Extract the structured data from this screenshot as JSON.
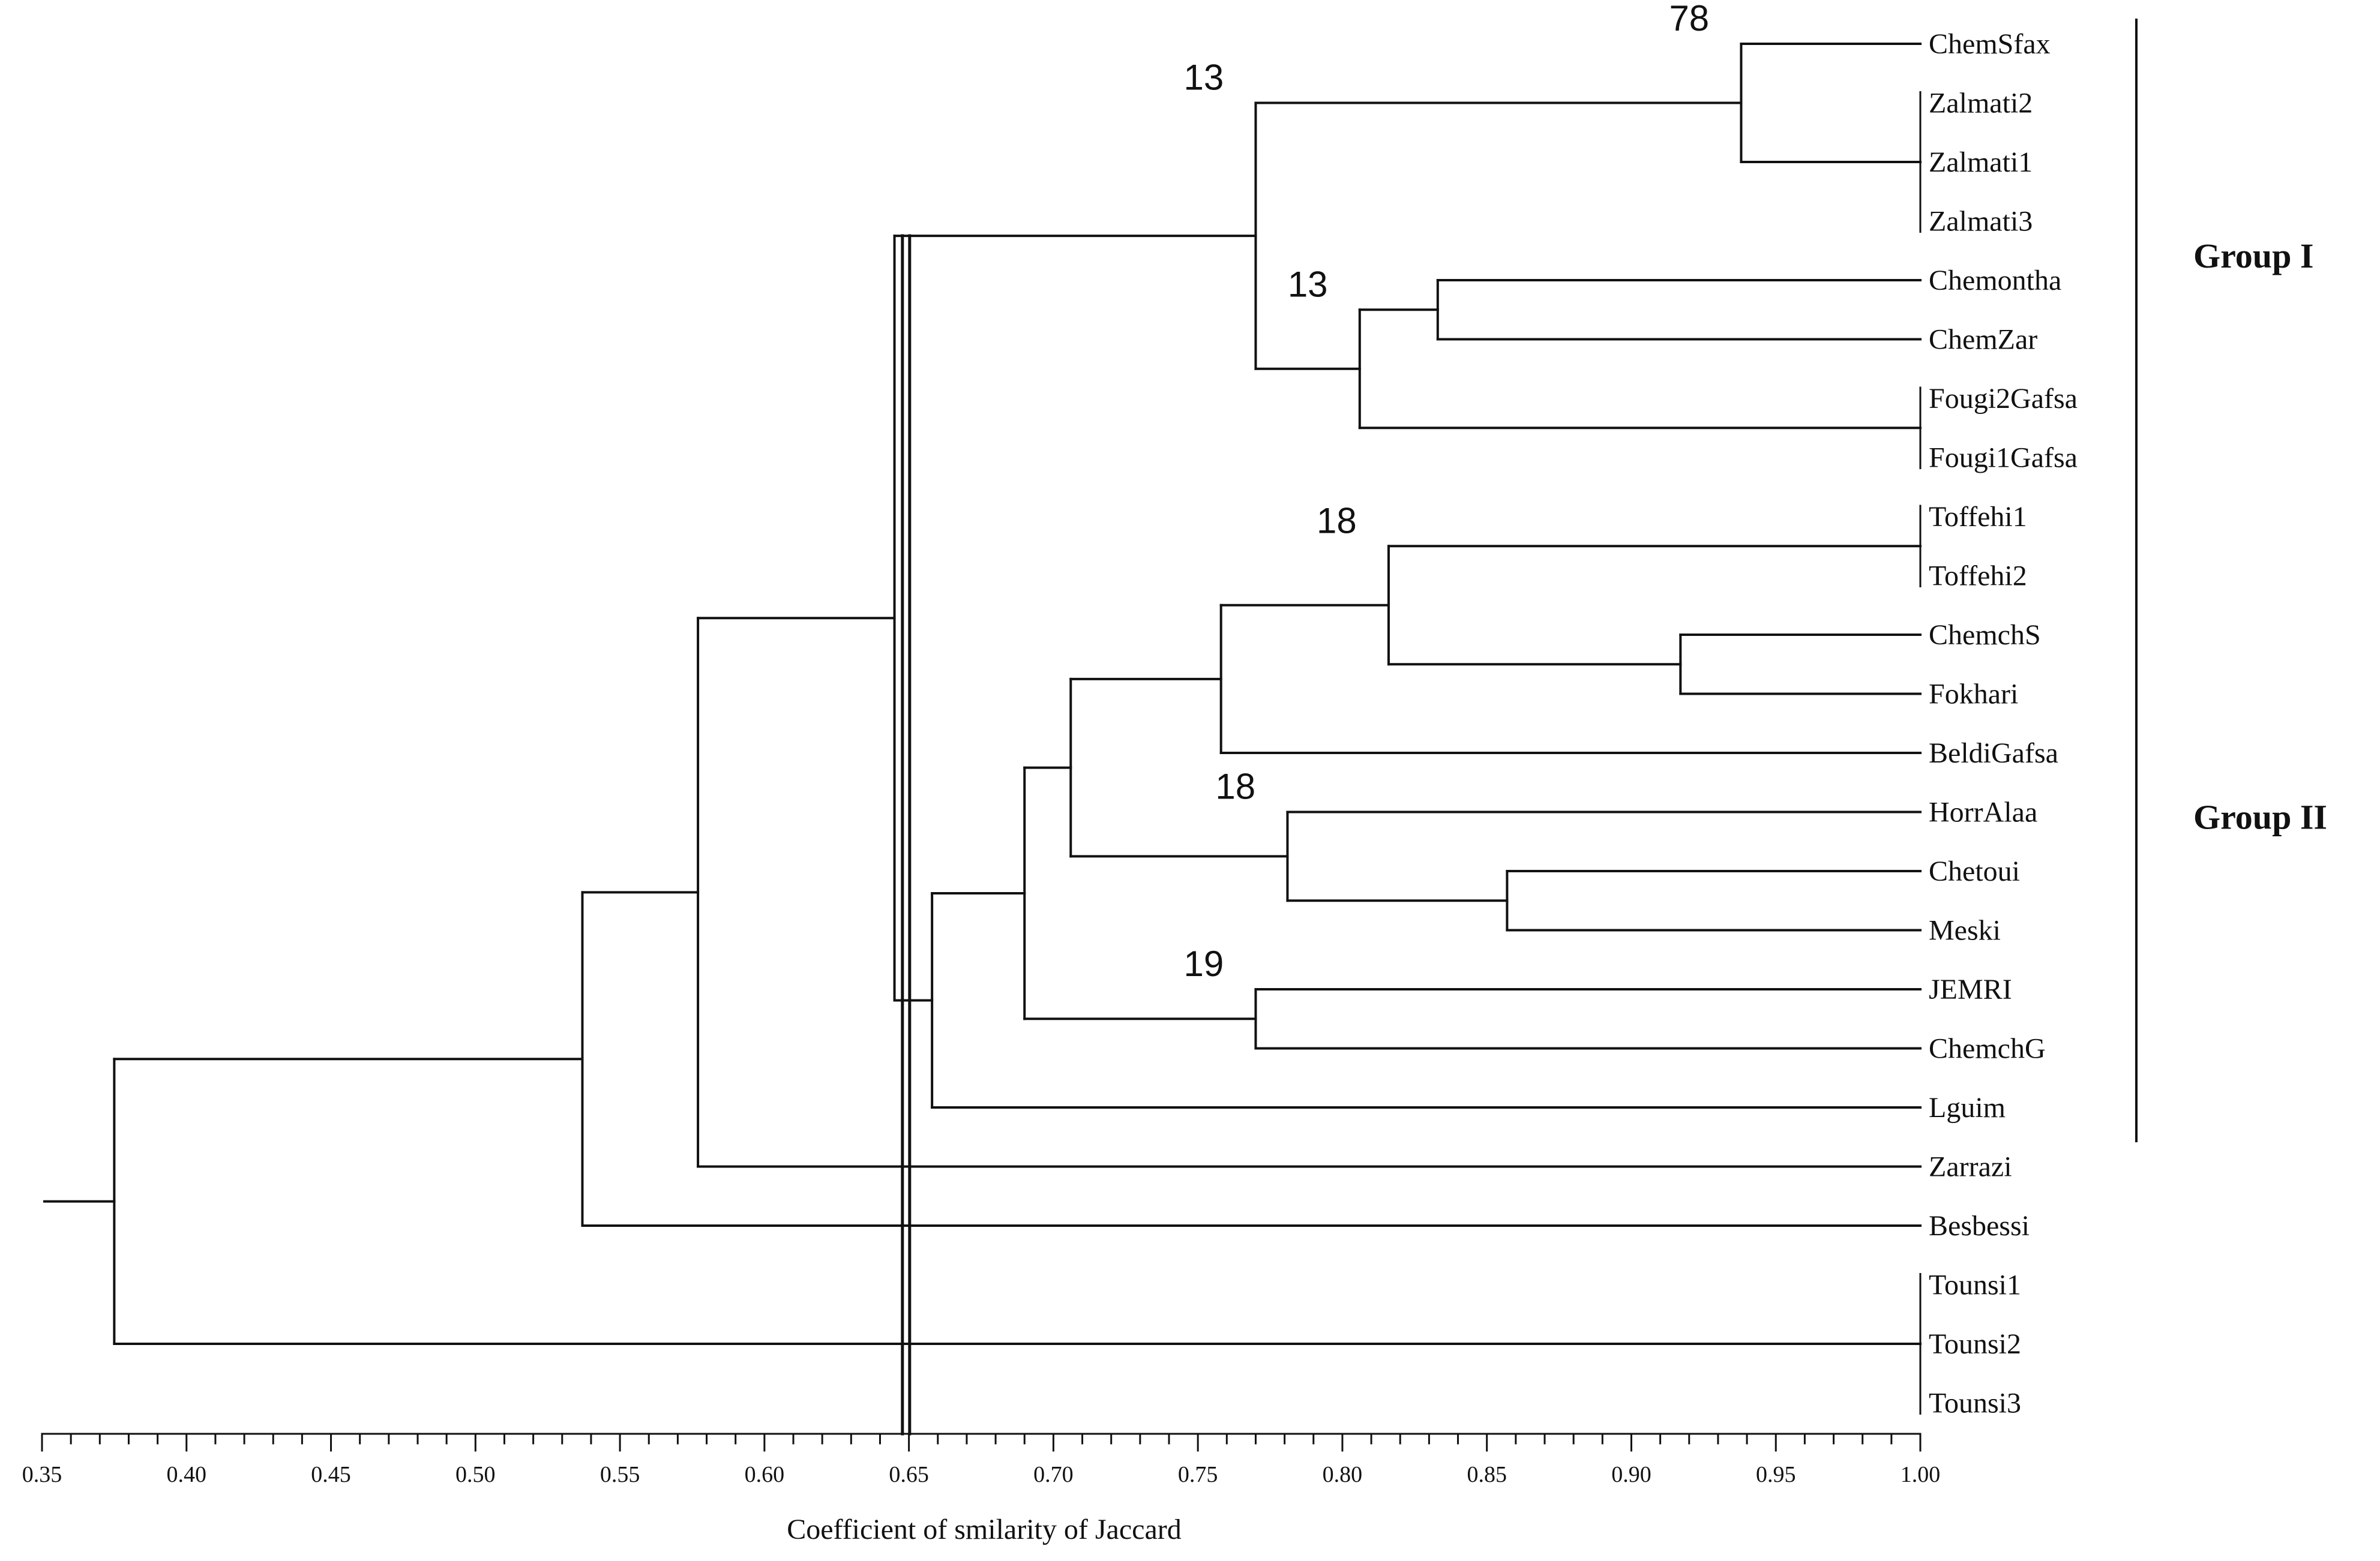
{
  "chart_data": {
    "type": "dendrogram",
    "xlabel": "Coefficient  of smilarity of Jaccard",
    "xlim": [
      0.35,
      1.0
    ],
    "ticks": [
      "0.35",
      "0.40",
      "0.45",
      "0.50",
      "0.55",
      "0.60",
      "0.65",
      "0.70",
      "0.75",
      "0.80",
      "0.85",
      "0.90",
      "0.95",
      "1.00"
    ],
    "cut_line": 0.649,
    "leaves": [
      "ChemSfax",
      "Zalmati2",
      "Zalmati1",
      "Zalmati3",
      "Chemontha",
      "ChemZar",
      "Fougi2Gafsa",
      "Fougi1Gafsa",
      "Toffehi1",
      "Toffehi2",
      "ChemchS",
      "Fokhari",
      "BeldiGafsa",
      "HorrAlaa",
      "Chetoui",
      "Meski",
      "JEMRI",
      "ChemchG",
      "Lguim",
      "Zarrazi",
      "Besbessi",
      "Tounsi1",
      "Tounsi2",
      "Tounsi3"
    ],
    "merges": [
      {
        "id": "Z",
        "children": [
          "Zalmati2",
          "Zalmati1",
          "Zalmati3"
        ],
        "similarity": 1.0
      },
      {
        "id": "F",
        "children": [
          "Fougi2Gafsa",
          "Fougi1Gafsa"
        ],
        "similarity": 1.0
      },
      {
        "id": "T",
        "children": [
          "Toffehi1",
          "Toffehi2"
        ],
        "similarity": 1.0
      },
      {
        "id": "TN",
        "children": [
          "Tounsi1",
          "Tounsi2",
          "Tounsi3"
        ],
        "similarity": 1.0
      },
      {
        "id": "A",
        "children": [
          "ChemSfax",
          "Z"
        ],
        "similarity": 0.938,
        "bootstrap": "78"
      },
      {
        "id": "B",
        "children": [
          "Chemontha",
          "ChemZar"
        ],
        "similarity": 0.833
      },
      {
        "id": "C",
        "children": [
          "B",
          "F"
        ],
        "similarity": 0.806,
        "bootstrap": "13"
      },
      {
        "id": "D",
        "children": [
          "A",
          "C"
        ],
        "similarity": 0.77,
        "bootstrap": "13"
      },
      {
        "id": "E",
        "children": [
          "ChemchS",
          "Fokhari"
        ],
        "similarity": 0.917
      },
      {
        "id": "G",
        "children": [
          "T",
          "E"
        ],
        "similarity": 0.816,
        "bootstrap": "18"
      },
      {
        "id": "H",
        "children": [
          "G",
          "BeldiGafsa"
        ],
        "similarity": 0.758
      },
      {
        "id": "I",
        "children": [
          "Chetoui",
          "Meski"
        ],
        "similarity": 0.857
      },
      {
        "id": "J",
        "children": [
          "HorrAlaa",
          "I"
        ],
        "similarity": 0.781,
        "bootstrap": "18"
      },
      {
        "id": "K",
        "children": [
          "H",
          "J"
        ],
        "similarity": 0.706
      },
      {
        "id": "L",
        "children": [
          "JEMRI",
          "ChemchG"
        ],
        "similarity": 0.77,
        "bootstrap": "19"
      },
      {
        "id": "M",
        "children": [
          "K",
          "L"
        ],
        "similarity": 0.69
      },
      {
        "id": "N",
        "children": [
          "M",
          "Lguim"
        ],
        "similarity": 0.658
      },
      {
        "id": "O",
        "children": [
          "D",
          "N"
        ],
        "similarity": 0.645
      },
      {
        "id": "P",
        "children": [
          "O",
          "Zarrazi"
        ],
        "similarity": 0.577
      },
      {
        "id": "Q",
        "children": [
          "P",
          "Besbessi"
        ],
        "similarity": 0.537
      },
      {
        "id": "R",
        "children": [
          "Q",
          "TN"
        ],
        "similarity": 0.375
      }
    ],
    "groups": [
      {
        "label": "Group I",
        "members": [
          "ChemSfax",
          "Zalmati2",
          "Zalmati1",
          "Zalmati3",
          "Chemontha",
          "ChemZar",
          "Fougi2Gafsa",
          "Fougi1Gafsa"
        ]
      },
      {
        "label": "Group II",
        "members": [
          "Toffehi1",
          "Toffehi2",
          "ChemchS",
          "Fokhari",
          "BeldiGafsa",
          "HorrAlaa",
          "Chetoui",
          "Meski",
          "JEMRI",
          "ChemchG",
          "Lguim"
        ]
      }
    ]
  }
}
